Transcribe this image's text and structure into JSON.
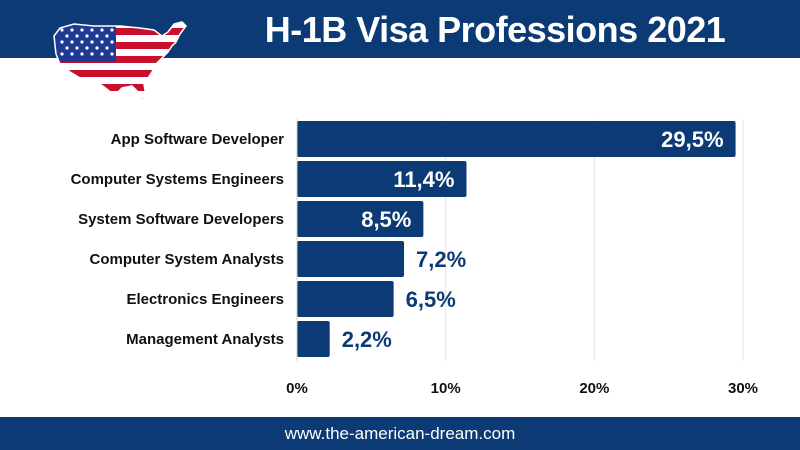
{
  "header": {
    "title": "H-1B Visa Professions 2021"
  },
  "footer": {
    "url": "www.the-american-dream.com"
  },
  "colors": {
    "brand": "#0b3a75",
    "bar": "#0b3a75",
    "grid": "#e6e6e6",
    "flag_red": "#c8102e",
    "flag_blue": "#1f3a93"
  },
  "icons": {
    "map": "usa-flag-map-icon"
  },
  "chart_data": {
    "type": "bar",
    "orientation": "horizontal",
    "title": "",
    "xlabel": "",
    "ylabel": "",
    "categories": [
      "App Software Developer",
      "Computer Systems Engineers",
      "System Software Developers",
      "Computer System Analysts",
      "Electronics Engineers",
      "Management Analysts"
    ],
    "values": [
      29.5,
      11.4,
      8.5,
      7.2,
      6.5,
      2.2
    ],
    "value_labels": [
      "29,5%",
      "11,4%",
      "8,5%",
      "7,2%",
      "6,5%",
      "2,2%"
    ],
    "xlim": [
      0,
      30
    ],
    "xticks": [
      0,
      10,
      20,
      30
    ],
    "xtick_labels": [
      "0%",
      "10%",
      "20%",
      "30%"
    ],
    "grid": true
  }
}
